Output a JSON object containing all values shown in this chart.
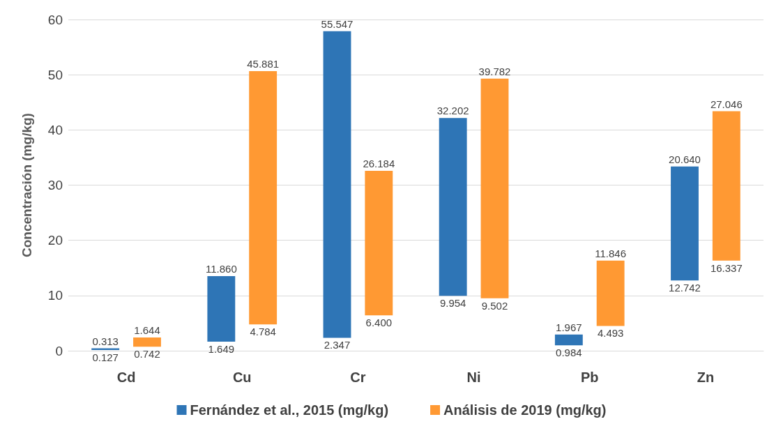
{
  "chart_data": {
    "type": "bar",
    "ylabel": "Concentración (mg/kg)",
    "categories": [
      "Cd",
      "Cu",
      "Cr",
      "Ni",
      "Pb",
      "Zn"
    ],
    "series": [
      {
        "name": "Fernández et al., 2015 (mg/kg)",
        "color": "#2e75b6",
        "base": [
          0.127,
          1.649,
          2.347,
          9.954,
          0.984,
          12.742
        ],
        "values": [
          0.313,
          11.86,
          55.547,
          32.202,
          1.967,
          20.64
        ],
        "value_labels": [
          "0.313",
          "11.860",
          "55.547",
          "32.202",
          "1.967",
          "20.640"
        ]
      },
      {
        "name": "Análisis de 2019 (mg/kg)",
        "color": "#ff9933",
        "base": [
          0.742,
          4.784,
          6.4,
          9.502,
          4.493,
          16.337
        ],
        "values": [
          1.644,
          45.881,
          26.184,
          39.782,
          11.846,
          27.046
        ],
        "value_labels": [
          "1.644",
          "45.881",
          "26.184",
          "39.782",
          "11.846",
          "27.046"
        ]
      }
    ],
    "annotations": [
      "0.127",
      "1.649",
      "2.347",
      "9.954",
      "0.984",
      "12.742",
      "0.742",
      "4.784",
      "6.400",
      "9.502",
      "4.493",
      "16.337"
    ],
    "ylim": [
      0,
      60
    ],
    "yticks": [
      0,
      10,
      20,
      30,
      40,
      50,
      60
    ],
    "grid": "y",
    "legend": "bottom"
  }
}
